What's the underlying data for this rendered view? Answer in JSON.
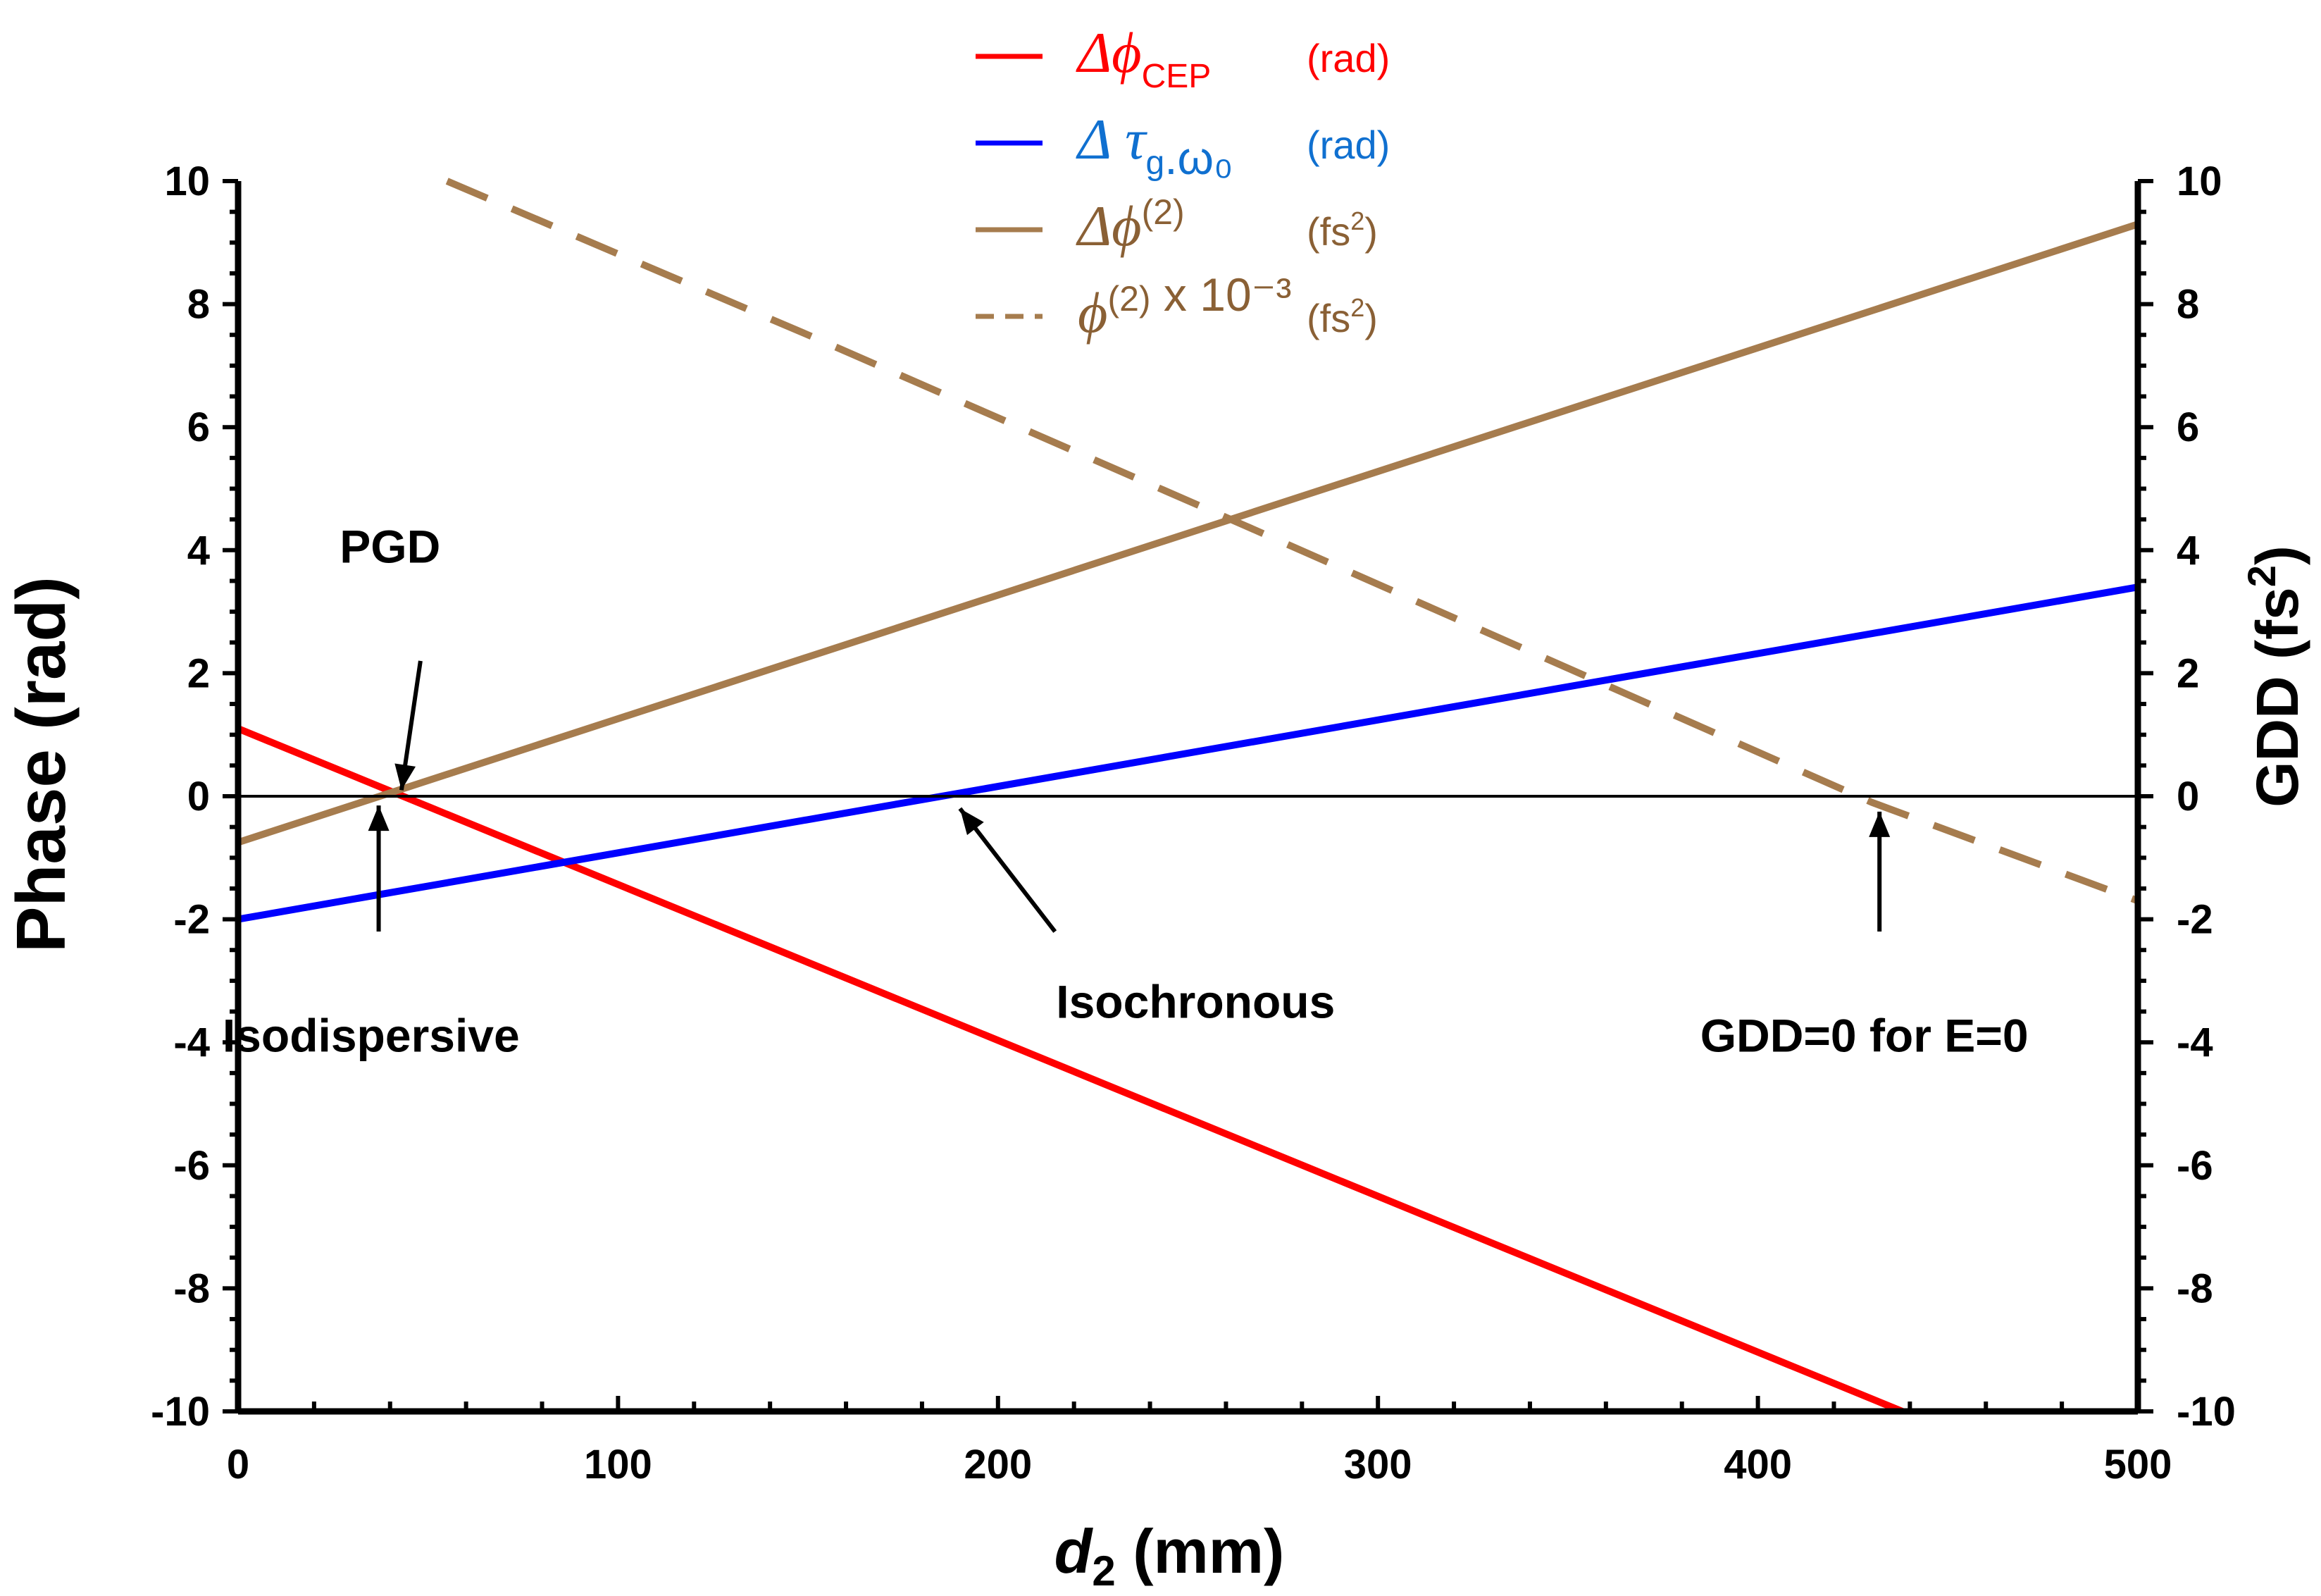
{
  "chart_data": {
    "type": "line",
    "xlabel_var": "d",
    "xlabel_sub": "2",
    "xlabel_unit": " (mm)",
    "ylabel_left": "Phase (rad)",
    "ylabel_right_main": "GDD (fs",
    "ylabel_right_sup": "2",
    "ylabel_right_close": ")",
    "xlim": [
      0,
      500
    ],
    "ylim": [
      -10,
      10
    ],
    "y2lim": [
      -10,
      10
    ],
    "x_ticks": [
      "0",
      "100",
      "200",
      "300",
      "400",
      "500"
    ],
    "y_ticks": [
      "-10",
      "-8",
      "-6",
      "-4",
      "-2",
      "0",
      "2",
      "4",
      "6",
      "8",
      "10"
    ],
    "y2_ticks": [
      "-10",
      "-8",
      "-6",
      "-4",
      "-2",
      "0",
      "2",
      "4",
      "6",
      "8",
      "10"
    ],
    "legend_position": "top",
    "series": [
      {
        "legend_main": "Δϕ",
        "legend_sub": "CEP",
        "legend_sup": "",
        "legend_extra": "",
        "legend_unit": "(rad)",
        "legend_unit_sup": "",
        "legend_unit_close": "",
        "color": "#ff0000",
        "style": "solid",
        "axis": "left",
        "x": [
          0,
          438
        ],
        "y": [
          1.1,
          -10
        ]
      },
      {
        "legend_main": "Δ τ",
        "legend_sub": "g",
        "legend_sup": "",
        "legend_extra": ".ω₀",
        "legend_unit": "(rad)",
        "legend_unit_sup": "",
        "legend_unit_close": "",
        "color": "#0000ff",
        "style": "solid",
        "axis": "left",
        "x": [
          0,
          500
        ],
        "y": [
          -2.0,
          3.4
        ]
      },
      {
        "legend_main": "Δϕ",
        "legend_sub": "",
        "legend_sup": "(2)",
        "legend_extra": "",
        "legend_unit": "(fs",
        "legend_unit_sup": "2",
        "legend_unit_close": ")",
        "color": "#a67c4e",
        "style": "solid",
        "axis": "right",
        "x": [
          0,
          500
        ],
        "y": [
          -0.75,
          9.3
        ]
      },
      {
        "legend_main": "ϕ",
        "legend_sub": "",
        "legend_sup": "(2)",
        "legend_extra": " x 10⁻³",
        "legend_unit": "(fs",
        "legend_unit_sup": "2",
        "legend_unit_close": ")",
        "color": "#a67c4e",
        "style": "dashed",
        "axis": "right",
        "x": [
          55,
          150,
          265,
          430,
          500
        ],
        "y": [
          10.0,
          7.5,
          4.4,
          -0.1,
          -1.7
        ]
      }
    ],
    "annotations": [
      {
        "text": "PGD",
        "text_x": 40,
        "text_y": 3.8,
        "arrow_from": [
          48,
          2.2
        ],
        "arrow_to": [
          43,
          0.1
        ]
      },
      {
        "text": "Isodispersive",
        "text_x": 35,
        "text_y": -4.15,
        "arrow_from": [
          37,
          -2.2
        ],
        "arrow_to": [
          37,
          -0.15
        ]
      },
      {
        "text": "Isochronous",
        "text_x": 252,
        "text_y": -3.6,
        "arrow_from": [
          215,
          -2.2
        ],
        "arrow_to": [
          190,
          -0.2
        ]
      },
      {
        "text": "GDD=0 for E=0",
        "text_x": 428,
        "text_y": -4.15,
        "arrow_from": [
          432,
          -2.2
        ],
        "arrow_to": [
          432,
          -0.25
        ]
      }
    ]
  }
}
